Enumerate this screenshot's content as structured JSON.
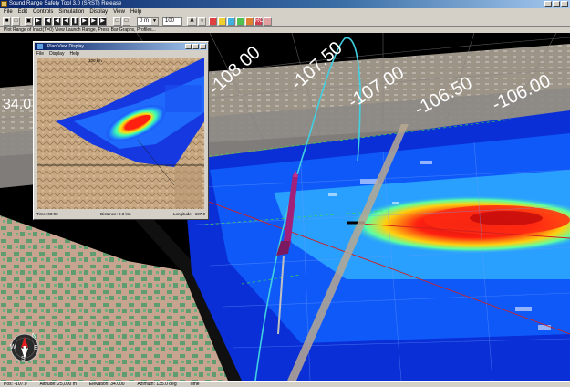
{
  "window": {
    "title": "Sound Range Safety Tool 3.0 (SRST) Release",
    "icon": "app-icon"
  },
  "menubar": {
    "items": [
      "File",
      "Edit",
      "Controls",
      "Simulation",
      "Display",
      "View",
      "Help"
    ]
  },
  "toolbar": {
    "altitude_value": "0 m",
    "zoom_value": "100",
    "text_tool": "A",
    "record_label": "RC"
  },
  "status_line": "Plot Range of Inact(T=0) View Launch Range, Press Bar Graphs, Profiles...",
  "viewport": {
    "longitude_labels": [
      "34.0",
      "-108.00",
      "-107.50",
      "-107.00",
      "-106.50",
      "-106.00"
    ]
  },
  "inset": {
    "title": "Plan View Display",
    "menu": [
      "File",
      "Display",
      "Help"
    ],
    "scale_label": "100 km",
    "status": {
      "time": "Time: 00:00",
      "distance": "Distance: 0.0 km",
      "longitude": "Longitude: -107.0"
    }
  },
  "compass": {
    "n": "N",
    "s": "S",
    "e": "E",
    "w": "W"
  },
  "statusbar": {
    "items": [
      "Pos: -107.0",
      "Altitude: 25,000 m",
      "Elevation: 34.000",
      "Azimuth: 135.0 deg",
      "Time"
    ]
  },
  "colors": {
    "trajectory": "#40d0e0",
    "rocket": "#a0207a",
    "terrain_green": "#5a9a6a",
    "terrain_tan": "#c8a990",
    "hazard_hot": "#e02010"
  }
}
